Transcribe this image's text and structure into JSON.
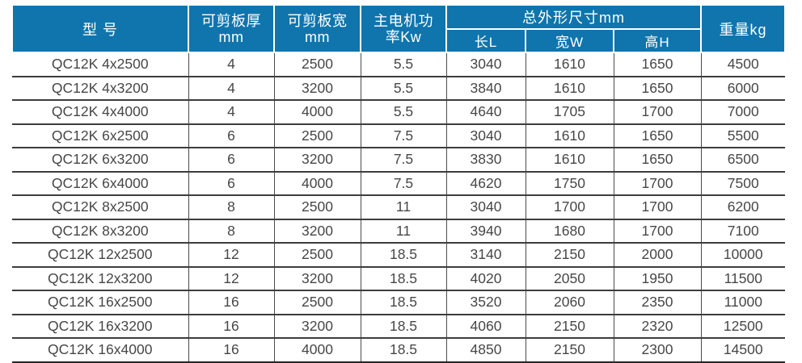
{
  "table": {
    "title_semantic": "QC12K shearing machine specification table",
    "accent_color": "#0f75ac",
    "header": {
      "model": "型 号",
      "thickness_line1": "可剪板厚",
      "thickness_line2": "mm",
      "width_line1": "可剪板宽",
      "width_line2": "mm",
      "power_line1": "主电机功",
      "power_line2": "率Kw",
      "dimensions_group": "总外形尺寸mm",
      "length": "长L",
      "width_w": "宽W",
      "height_h": "高H",
      "weight": "重量kg"
    },
    "rows": [
      [
        "QC12K 4x2500",
        "4",
        "2500",
        "5.5",
        "3040",
        "1610",
        "1650",
        "4500"
      ],
      [
        "QC12K 4x3200",
        "4",
        "3200",
        "5.5",
        "3840",
        "1610",
        "1650",
        "6000"
      ],
      [
        "QC12K 4x4000",
        "4",
        "4000",
        "5.5",
        "4640",
        "1705",
        "1700",
        "7000"
      ],
      [
        "QC12K 6x2500",
        "6",
        "2500",
        "7.5",
        "3040",
        "1610",
        "1650",
        "5500"
      ],
      [
        "QC12K 6x3200",
        "6",
        "3200",
        "7.5",
        "3830",
        "1610",
        "1650",
        "6500"
      ],
      [
        "QC12K 6x4000",
        "6",
        "4000",
        "7.5",
        "4620",
        "1750",
        "1700",
        "7500"
      ],
      [
        "QC12K 8x2500",
        "8",
        "2500",
        "11",
        "3040",
        "1700",
        "1700",
        "6200"
      ],
      [
        "QC12K 8x3200",
        "8",
        "3200",
        "11",
        "3940",
        "1680",
        "1700",
        "7100"
      ],
      [
        "QC12K 12x2500",
        "12",
        "2500",
        "18.5",
        "3140",
        "2150",
        "2000",
        "10000"
      ],
      [
        "QC12K 12x3200",
        "12",
        "3200",
        "18.5",
        "4020",
        "2050",
        "1950",
        "11500"
      ],
      [
        "QC12K 16x2500",
        "16",
        "2500",
        "18.5",
        "3520",
        "2060",
        "2350",
        "11000"
      ],
      [
        "QC12K 16x3200",
        "16",
        "3200",
        "18.5",
        "4060",
        "2150",
        "2320",
        "12500"
      ],
      [
        "QC12K 16x4000",
        "16",
        "4000",
        "18.5",
        "4850",
        "2150",
        "2300",
        "14500"
      ]
    ]
  }
}
